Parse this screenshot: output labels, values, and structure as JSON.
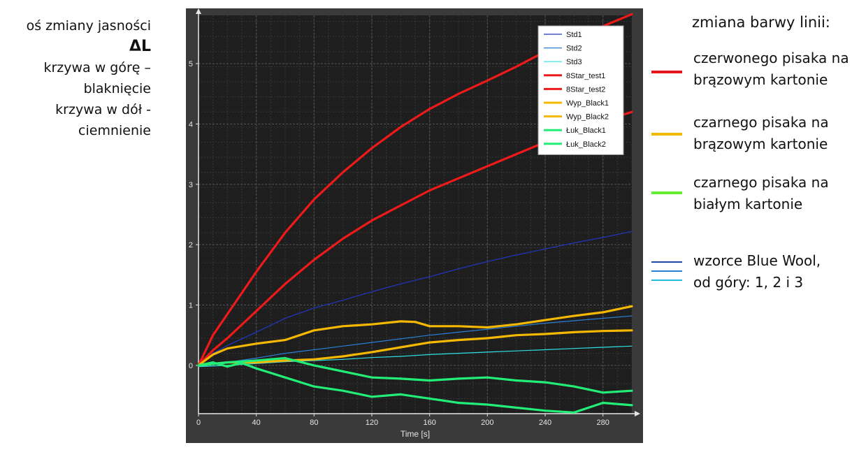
{
  "left_notes": {
    "line1": "oś zmiany jasności",
    "symbol": "ΔL",
    "line3": "krzywa w górę –",
    "line4": "blaknięcie",
    "line5": "krzywa w dół -",
    "line6": "ciemnienie"
  },
  "right_legend": {
    "title": "zmiana barwy linii:",
    "items": [
      {
        "line1": "czerwonego pisaka na",
        "line2": "brązowym kartonie",
        "color": "#e8141c"
      },
      {
        "line1": "czarnego pisaka na",
        "line2": "brązowym kartonie",
        "color": "#f5b800"
      },
      {
        "line1": "czarnego pisaka na",
        "line2": "białym kartonie",
        "color": "#66ee33"
      },
      {
        "line1": "wzorce Blue Wool,",
        "line2": "od góry: 1, 2 i 3",
        "colors": [
          "#1f4aa8",
          "#2a7fd4",
          "#25b8e0"
        ]
      }
    ]
  },
  "chart_data": {
    "type": "line",
    "title": "",
    "xlabel": "Time [s]",
    "ylabel": "",
    "xlim": [
      0,
      300
    ],
    "ylim": [
      -0.8,
      5.8
    ],
    "xticks": [
      0,
      40,
      80,
      120,
      160,
      200,
      240,
      280
    ],
    "yticks": [
      0,
      1,
      2,
      3,
      4,
      5
    ],
    "grid": true,
    "legend_position": "top-right",
    "background": "#1e1e1e",
    "series": [
      {
        "name": "Std1",
        "color": "#2135b8",
        "width": 1.3,
        "x": [
          0,
          10,
          20,
          40,
          60,
          80,
          100,
          120,
          140,
          160,
          180,
          200,
          220,
          240,
          260,
          280,
          300
        ],
        "y": [
          0,
          0.2,
          0.33,
          0.55,
          0.78,
          0.95,
          1.08,
          1.22,
          1.35,
          1.47,
          1.6,
          1.72,
          1.83,
          1.93,
          2.03,
          2.12,
          2.22
        ]
      },
      {
        "name": "Std2",
        "color": "#2a7fd4",
        "width": 1.2,
        "x": [
          0,
          10,
          20,
          40,
          60,
          80,
          100,
          120,
          140,
          160,
          180,
          200,
          220,
          240,
          260,
          280,
          300
        ],
        "y": [
          0,
          0.02,
          0.05,
          0.12,
          0.2,
          0.26,
          0.32,
          0.38,
          0.44,
          0.5,
          0.55,
          0.6,
          0.65,
          0.7,
          0.74,
          0.78,
          0.82
        ]
      },
      {
        "name": "Std3",
        "color": "#2ee0e6",
        "width": 1.2,
        "x": [
          0,
          20,
          40,
          60,
          80,
          100,
          120,
          140,
          160,
          180,
          200,
          220,
          240,
          260,
          280,
          300
        ],
        "y": [
          -0.02,
          0.0,
          0.03,
          0.06,
          0.08,
          0.1,
          0.13,
          0.15,
          0.18,
          0.2,
          0.22,
          0.24,
          0.26,
          0.28,
          0.3,
          0.32
        ]
      },
      {
        "name": "8Star_test1",
        "color": "#ee1a1a",
        "width": 3.2,
        "x": [
          0,
          10,
          20,
          40,
          60,
          80,
          100,
          120,
          140,
          160,
          180,
          200,
          220,
          240,
          260,
          280,
          300
        ],
        "y": [
          0,
          0.5,
          0.85,
          1.55,
          2.2,
          2.75,
          3.2,
          3.6,
          3.95,
          4.25,
          4.5,
          4.72,
          4.95,
          5.2,
          5.42,
          5.62,
          5.82
        ]
      },
      {
        "name": "8Star_test2",
        "color": "#ee1a1a",
        "width": 3.2,
        "x": [
          0,
          10,
          20,
          40,
          60,
          80,
          100,
          120,
          140,
          160,
          180,
          200,
          220,
          240,
          260,
          280,
          300
        ],
        "y": [
          0,
          0.25,
          0.45,
          0.9,
          1.35,
          1.75,
          2.1,
          2.4,
          2.65,
          2.9,
          3.1,
          3.3,
          3.5,
          3.7,
          3.88,
          4.05,
          4.2
        ]
      },
      {
        "name": "Wyp_Black1",
        "color": "#f5b800",
        "width": 3.2,
        "x": [
          0,
          10,
          20,
          40,
          60,
          80,
          100,
          120,
          140,
          150,
          160,
          180,
          200,
          220,
          240,
          260,
          280,
          300
        ],
        "y": [
          0,
          0.18,
          0.28,
          0.36,
          0.42,
          0.58,
          0.65,
          0.68,
          0.73,
          0.72,
          0.65,
          0.65,
          0.63,
          0.68,
          0.75,
          0.82,
          0.88,
          0.98
        ]
      },
      {
        "name": "Wyp_Black2",
        "color": "#f5b800",
        "width": 3.2,
        "x": [
          0,
          20,
          40,
          60,
          80,
          100,
          120,
          140,
          160,
          180,
          200,
          220,
          240,
          260,
          280,
          300
        ],
        "y": [
          0,
          0.05,
          0.05,
          0.08,
          0.1,
          0.15,
          0.22,
          0.3,
          0.38,
          0.42,
          0.45,
          0.5,
          0.52,
          0.55,
          0.57,
          0.58
        ]
      },
      {
        "name": "Łuk_Black1",
        "color": "#22ee77",
        "width": 3.2,
        "x": [
          0,
          20,
          40,
          60,
          80,
          100,
          120,
          140,
          160,
          180,
          200,
          220,
          240,
          260,
          280,
          300
        ],
        "y": [
          0,
          0.05,
          0.08,
          0.12,
          0.0,
          -0.1,
          -0.2,
          -0.22,
          -0.25,
          -0.22,
          -0.2,
          -0.25,
          -0.28,
          -0.35,
          -0.45,
          -0.42
        ]
      },
      {
        "name": "Łuk_Black2",
        "color": "#22ee77",
        "width": 3.2,
        "x": [
          0,
          10,
          20,
          30,
          40,
          60,
          80,
          100,
          120,
          140,
          160,
          180,
          200,
          220,
          240,
          260,
          280,
          300
        ],
        "y": [
          0,
          0.05,
          -0.02,
          0.04,
          -0.05,
          -0.2,
          -0.35,
          -0.42,
          -0.52,
          -0.48,
          -0.55,
          -0.62,
          -0.65,
          -0.7,
          -0.75,
          -0.78,
          -0.62,
          -0.66
        ]
      }
    ]
  }
}
